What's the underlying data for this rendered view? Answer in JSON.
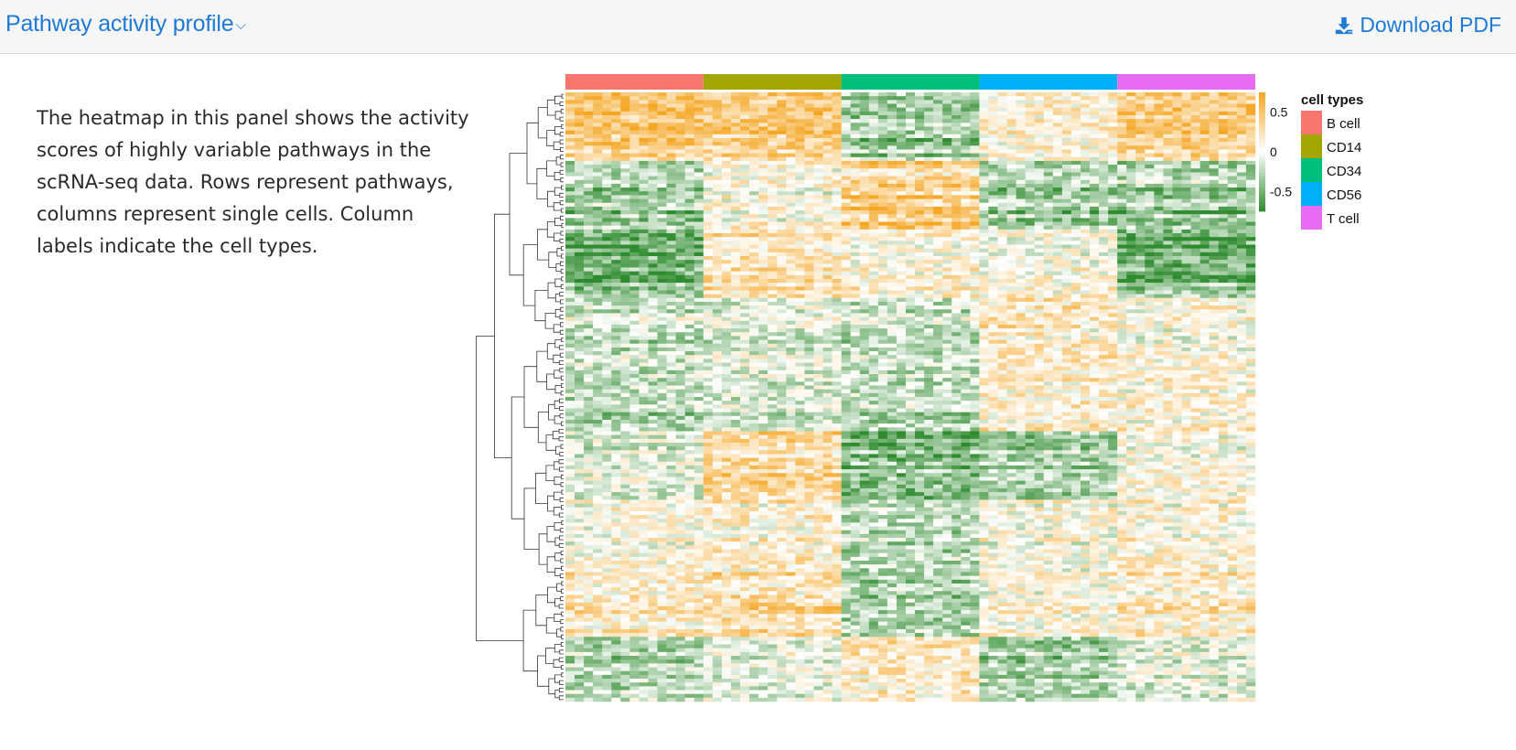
{
  "header": {
    "title": "Pathway activity profile",
    "download_label": "Download PDF"
  },
  "description": "The heatmap in this panel shows the activity scores of highly variable pathways in the scRNA-seq data. Rows represent pathways, columns represent single cells. Column labels indicate the cell types.",
  "colors": {
    "accent": "#1e7ad6",
    "low": "#2e8b2e",
    "mid": "#ffffff",
    "high": "#f5a623"
  },
  "chart_data": {
    "type": "heatmap",
    "title": "",
    "xlabel": "",
    "ylabel": "",
    "color_scale": {
      "ticks": [
        0.5,
        0,
        -0.5
      ],
      "tick_labels": [
        "0.5",
        "0",
        "-0.5"
      ],
      "range": [
        -0.75,
        0.75
      ]
    },
    "legend": {
      "title": "cell types",
      "placement": "right",
      "entries": [
        {
          "label": "B cell",
          "color": "#f8766d"
        },
        {
          "label": "CD14",
          "color": "#a3a500"
        },
        {
          "label": "CD34",
          "color": "#00bf7d"
        },
        {
          "label": "CD56",
          "color": "#00b0f6"
        },
        {
          "label": "T cell",
          "color": "#e76bf3"
        }
      ]
    },
    "column_groups": [
      "B cell",
      "CD14",
      "CD34",
      "CD56",
      "T cell"
    ],
    "row_clusters": [
      {
        "mean": [
          0.45,
          0.4,
          -0.35,
          0.1,
          0.4
        ]
      },
      {
        "mean": [
          -0.35,
          0.05,
          0.45,
          -0.35,
          -0.4
        ]
      },
      {
        "mean": [
          -0.55,
          0.25,
          0.1,
          0.05,
          -0.55
        ]
      },
      {
        "mean": [
          -0.2,
          -0.1,
          -0.2,
          0.2,
          0.05
        ]
      },
      {
        "mean": [
          -0.3,
          -0.2,
          -0.3,
          0.15,
          0.1
        ]
      },
      {
        "mean": [
          -0.1,
          0.3,
          -0.45,
          -0.3,
          0.05
        ]
      },
      {
        "mean": [
          0.05,
          0.15,
          -0.25,
          0.05,
          0.1
        ]
      },
      {
        "mean": [
          0.2,
          0.3,
          -0.3,
          0.1,
          0.2
        ]
      },
      {
        "mean": [
          -0.3,
          -0.1,
          0.2,
          -0.35,
          -0.1
        ]
      }
    ]
  }
}
